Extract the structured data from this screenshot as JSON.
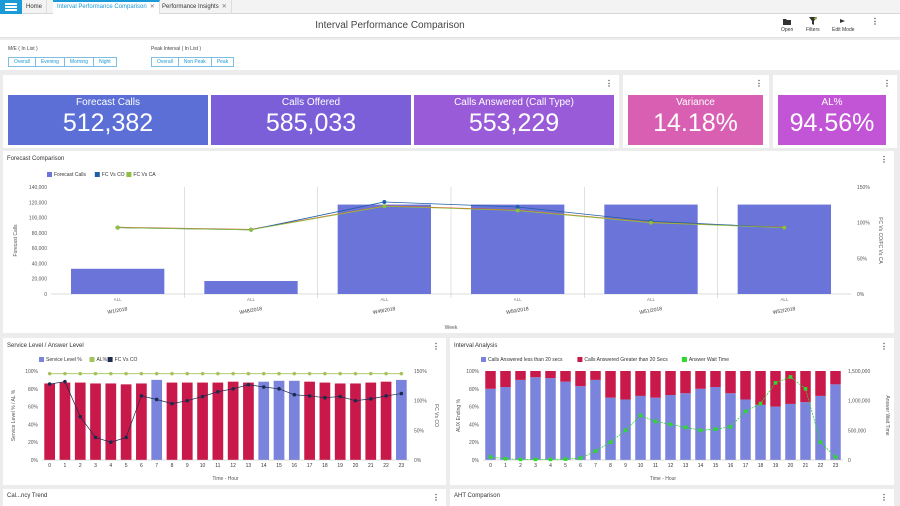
{
  "tabs": [
    {
      "label": "Home"
    },
    {
      "label": "Interval Performance Comparison"
    },
    {
      "label": "Performance Insights"
    }
  ],
  "page_title": "Interval Performance Comparison",
  "toolbar": {
    "open": "Open",
    "filters": "Filters",
    "edit_mode": "Edit Mode"
  },
  "filters": {
    "me_label": "M/E ( In List )",
    "me_options": [
      "Overall",
      "Evening",
      "Morning",
      "Night"
    ],
    "peak_label": "Peak Interval ( In List )",
    "peak_options": [
      "Overall",
      "Non Peak",
      "Peak"
    ]
  },
  "kpis": [
    {
      "label": "Forecast Calls",
      "value": "512,382",
      "color": "#5b6fd6"
    },
    {
      "label": "Calls Offered",
      "value": "585,033",
      "color": "#7a5fd8"
    },
    {
      "label": "Calls Answered (Call Type)",
      "value": "553,229",
      "color": "#9a5bd8"
    },
    {
      "label": "Variance",
      "value": "14.18%",
      "color": "#d85fb2"
    },
    {
      "label": "AL%",
      "value": "94.56%",
      "color": "#c254d6"
    }
  ],
  "forecast_panel": {
    "title": "Forecast Comparison"
  },
  "service_panel": {
    "title": "Service Level / Answer Level"
  },
  "interval_panel": {
    "title": "Interval Analysis"
  },
  "bottom_panels": {
    "left_title": "Cal...ncy Trend",
    "right_title": "AHT Comparison"
  },
  "chart_data": [
    {
      "type": "bar",
      "title": "Forecast Comparison",
      "categories": [
        "W1/2018",
        "W48/2018",
        "W49/2018",
        "W50/2018",
        "W51/2018",
        "W52/2018"
      ],
      "group_label": "ALL",
      "xlabel": "Week",
      "ylabel": "Forecast Calls",
      "y2label": "FC Vs CO/FC Vs CA",
      "ylim": [
        0,
        140000
      ],
      "yticks": [
        "0",
        "20,000",
        "40,000",
        "60,000",
        "80,000",
        "100,000",
        "120,000",
        "140,000"
      ],
      "y2lim": [
        0,
        150
      ],
      "y2ticks": [
        "0%",
        "50%",
        "100%",
        "150%"
      ],
      "legend": "top-left",
      "series": [
        {
          "name": "Forecast Calls",
          "kind": "bar",
          "axis": "left",
          "color": "#6b74d8",
          "values": [
            33000,
            17000,
            117000,
            117000,
            117000,
            117000
          ]
        },
        {
          "name": "FC Vs CO",
          "kind": "line",
          "axis": "right",
          "color": "#1f5fa8",
          "values": [
            93,
            90,
            129,
            122,
            102,
            93
          ]
        },
        {
          "name": "FC Vs CA",
          "kind": "line",
          "axis": "right",
          "color": "#8fbf3f",
          "values": [
            93,
            90,
            123,
            117,
            100,
            93
          ]
        }
      ],
      "extra_line": {
        "color": "#e05a2a"
      }
    },
    {
      "type": "bar",
      "title": "Service Level / Answer Level",
      "categories": [
        "0",
        "1",
        "2",
        "3",
        "4",
        "5",
        "6",
        "7",
        "8",
        "9",
        "10",
        "11",
        "12",
        "13",
        "14",
        "15",
        "16",
        "17",
        "18",
        "19",
        "20",
        "21",
        "22",
        "23"
      ],
      "xlabel": "Time - Hour",
      "ylabel": "Service Level % / AL %",
      "y2label": "FC Vs CO",
      "ylim": [
        0,
        100
      ],
      "yticks": [
        "0%",
        "20%",
        "40%",
        "60%",
        "80%",
        "100%"
      ],
      "y2lim": [
        0,
        150
      ],
      "y2ticks": [
        "0%",
        "50%",
        "100%",
        "150%"
      ],
      "legend": "top-left",
      "series": [
        {
          "name": "Service Level %",
          "kind": "bar",
          "axis": "left",
          "values": [
            86,
            87,
            87,
            86,
            86,
            85,
            86,
            90,
            87,
            87,
            87,
            87,
            88,
            87,
            88,
            89,
            89,
            88,
            87,
            86,
            86,
            87,
            88,
            90
          ],
          "colors": [
            "#c8194a",
            "#c8194a",
            "#c8194a",
            "#c8194a",
            "#c8194a",
            "#c8194a",
            "#c8194a",
            "#7b84dc",
            "#c8194a",
            "#c8194a",
            "#c8194a",
            "#c8194a",
            "#c8194a",
            "#c8194a",
            "#7b84dc",
            "#7b84dc",
            "#7b84dc",
            "#c8194a",
            "#c8194a",
            "#c8194a",
            "#c8194a",
            "#c8194a",
            "#c8194a",
            "#7b84dc"
          ]
        },
        {
          "name": "AL%",
          "kind": "line",
          "axis": "left",
          "color": "#a4c45a",
          "values": [
            97,
            97,
            97,
            97,
            97,
            97,
            97,
            97,
            97,
            97,
            97,
            97,
            97,
            97,
            97,
            97,
            97,
            97,
            97,
            97,
            97,
            97,
            97,
            97
          ]
        },
        {
          "name": "FC Vs CO",
          "kind": "line",
          "axis": "right",
          "color": "#1c2a4e",
          "values": [
            128,
            132,
            73,
            38,
            30,
            38,
            108,
            102,
            95,
            100,
            107,
            115,
            120,
            127,
            123,
            120,
            110,
            108,
            105,
            107,
            100,
            103,
            108,
            112
          ]
        }
      ]
    },
    {
      "type": "bar",
      "title": "Interval Analysis",
      "categories": [
        "0",
        "1",
        "2",
        "3",
        "4",
        "5",
        "6",
        "7",
        "8",
        "9",
        "10",
        "11",
        "12",
        "13",
        "14",
        "15",
        "16",
        "17",
        "18",
        "19",
        "20",
        "21",
        "22",
        "23"
      ],
      "xlabel": "Time - Hour",
      "ylabel": "AUX Ending %",
      "y2label": "Answer Wait Time",
      "ylim": [
        0,
        100
      ],
      "yticks": [
        "0%",
        "20%",
        "40%",
        "60%",
        "80%",
        "100%"
      ],
      "y2lim": [
        0,
        1500000
      ],
      "y2ticks": [
        "0",
        "500,000",
        "1,000,000",
        "1,500,000"
      ],
      "legend": "top-left",
      "series": [
        {
          "name": "Calls Answered less than 20 secs",
          "kind": "stacked",
          "axis": "left",
          "color": "#7b84dc",
          "values": [
            80,
            82,
            90,
            93,
            92,
            88,
            83,
            90,
            70,
            68,
            72,
            70,
            73,
            75,
            80,
            82,
            75,
            68,
            62,
            60,
            63,
            65,
            72,
            85
          ]
        },
        {
          "name": "Calls Answered Greater than 20 Secs",
          "kind": "stacked",
          "axis": "left",
          "color": "#c8194a",
          "values": [
            20,
            18,
            10,
            7,
            8,
            12,
            17,
            10,
            30,
            32,
            28,
            30,
            27,
            25,
            20,
            18,
            25,
            32,
            38,
            40,
            37,
            35,
            28,
            15
          ]
        },
        {
          "name": "Answer Wait Time",
          "kind": "line",
          "axis": "right",
          "color": "#2ed82e",
          "values": [
            50000,
            20000,
            10000,
            10000,
            10000,
            15000,
            30000,
            150000,
            300000,
            500000,
            750000,
            650000,
            600000,
            550000,
            500000,
            520000,
            560000,
            820000,
            950000,
            1300000,
            1400000,
            1200000,
            300000,
            50000
          ]
        }
      ]
    }
  ]
}
